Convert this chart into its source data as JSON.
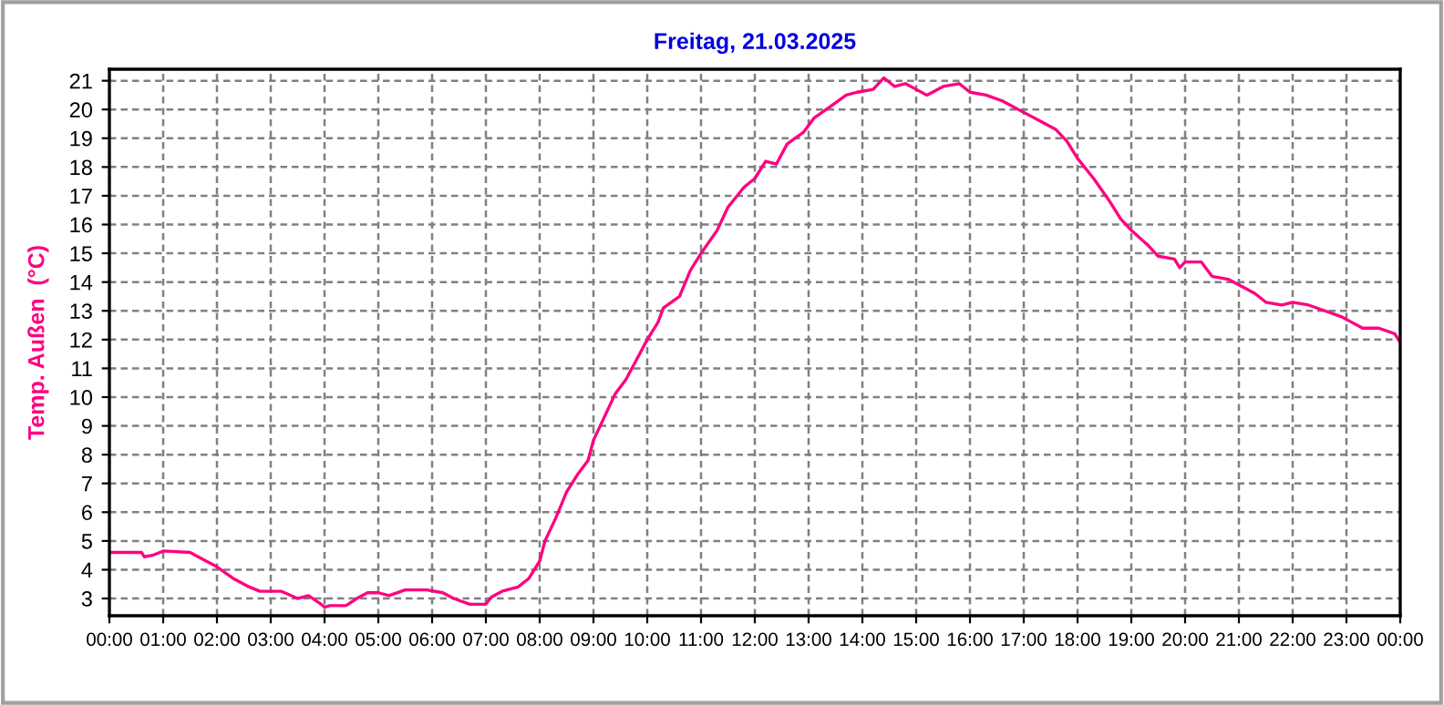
{
  "chart_data": {
    "type": "line",
    "title": "Freitag, 21.03.2025",
    "ylabel": "Temp. Außen  (°C)",
    "x": [
      0,
      0.6,
      0.65,
      0.8,
      1.0,
      1.5,
      1.8,
      2.0,
      2.3,
      2.6,
      2.8,
      3.2,
      3.5,
      3.7,
      3.9,
      4.0,
      4.1,
      4.4,
      4.6,
      4.8,
      5.0,
      5.2,
      5.5,
      5.9,
      6.2,
      6.4,
      6.7,
      7.0,
      7.1,
      7.3,
      7.6,
      7.8,
      8.0,
      8.1,
      8.3,
      8.5,
      8.7,
      8.9,
      9.0,
      9.2,
      9.4,
      9.6,
      9.8,
      10.0,
      10.2,
      10.3,
      10.6,
      10.8,
      11.0,
      11.3,
      11.5,
      11.8,
      12.0,
      12.2,
      12.4,
      12.6,
      12.9,
      13.1,
      13.4,
      13.7,
      13.9,
      14.2,
      14.4,
      14.6,
      14.8,
      15.0,
      15.2,
      15.5,
      15.8,
      16.0,
      16.3,
      16.6,
      17.0,
      17.3,
      17.6,
      17.8,
      18.0,
      18.3,
      18.6,
      18.8,
      19.0,
      19.3,
      19.5,
      19.8,
      19.9,
      20.0,
      20.3,
      20.5,
      20.8,
      21.0,
      21.3,
      21.5,
      21.8,
      22.0,
      22.3,
      22.6,
      22.9,
      23.1,
      23.3,
      23.6,
      23.9,
      24
    ],
    "series": [
      {
        "color": "#ff0080",
        "values": [
          4.6,
          4.6,
          4.45,
          4.5,
          4.65,
          4.6,
          4.3,
          4.1,
          3.7,
          3.4,
          3.25,
          3.25,
          3.0,
          3.1,
          2.85,
          2.7,
          2.75,
          2.75,
          3.0,
          3.2,
          3.2,
          3.1,
          3.3,
          3.3,
          3.2,
          3.0,
          2.8,
          2.8,
          3.05,
          3.25,
          3.4,
          3.7,
          4.3,
          5.0,
          5.8,
          6.7,
          7.3,
          7.8,
          8.5,
          9.3,
          10.1,
          10.6,
          11.3,
          12.0,
          12.6,
          13.1,
          13.5,
          14.4,
          15.0,
          15.8,
          16.6,
          17.3,
          17.6,
          18.2,
          18.1,
          18.8,
          19.2,
          19.7,
          20.1,
          20.5,
          20.6,
          20.7,
          21.1,
          20.8,
          20.9,
          20.7,
          20.5,
          20.8,
          20.9,
          20.6,
          20.5,
          20.3,
          19.9,
          19.6,
          19.3,
          18.9,
          18.3,
          17.6,
          16.8,
          16.2,
          15.8,
          15.3,
          14.9,
          14.8,
          14.5,
          14.7,
          14.7,
          14.2,
          14.1,
          13.9,
          13.6,
          13.3,
          13.2,
          13.3,
          13.2,
          13.0,
          12.8,
          12.6,
          12.4,
          12.4,
          12.2,
          11.9
        ]
      }
    ],
    "xlim": [
      0,
      24
    ],
    "xticks": [
      {
        "value": 0,
        "label": "00:00"
      },
      {
        "value": 1,
        "label": "01:00"
      },
      {
        "value": 2,
        "label": "02:00"
      },
      {
        "value": 3,
        "label": "03:00"
      },
      {
        "value": 4,
        "label": "04:00"
      },
      {
        "value": 5,
        "label": "05:00"
      },
      {
        "value": 6,
        "label": "06:00"
      },
      {
        "value": 7,
        "label": "07:00"
      },
      {
        "value": 8,
        "label": "08:00"
      },
      {
        "value": 9,
        "label": "09:00"
      },
      {
        "value": 10,
        "label": "10:00"
      },
      {
        "value": 11,
        "label": "11:00"
      },
      {
        "value": 12,
        "label": "12:00"
      },
      {
        "value": 13,
        "label": "13:00"
      },
      {
        "value": 14,
        "label": "14:00"
      },
      {
        "value": 15,
        "label": "15:00"
      },
      {
        "value": 16,
        "label": "16:00"
      },
      {
        "value": 17,
        "label": "17:00"
      },
      {
        "value": 18,
        "label": "18:00"
      },
      {
        "value": 19,
        "label": "19:00"
      },
      {
        "value": 20,
        "label": "20:00"
      },
      {
        "value": 21,
        "label": "21:00"
      },
      {
        "value": 22,
        "label": "22:00"
      },
      {
        "value": 23,
        "label": "23:00"
      },
      {
        "value": 24,
        "label": "00:00"
      }
    ],
    "ylim": [
      2.4,
      21.4
    ],
    "yticks": [
      3,
      4,
      5,
      6,
      7,
      8,
      9,
      10,
      11,
      12,
      13,
      14,
      15,
      16,
      17,
      18,
      19,
      20,
      21
    ],
    "grid": true,
    "marker": "none",
    "line_style": "solid"
  }
}
